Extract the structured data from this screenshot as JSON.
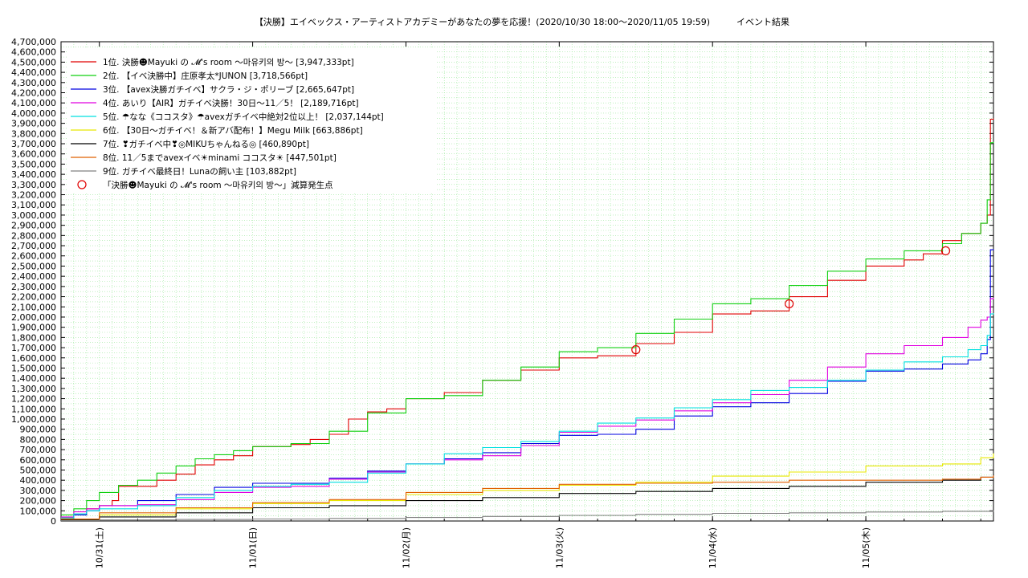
{
  "chart_data": {
    "type": "line",
    "title": "【決勝】エイベックス・アーティストアカデミーがあなたの夢を応援！(2020/10/30 18:00〜2020/11/05 19:59)　　　イベント結果",
    "y_ticks": [
      "0",
      "100,000",
      "200,000",
      "300,000",
      "400,000",
      "500,000",
      "600,000",
      "700,000",
      "800,000",
      "900,000",
      "1,000,000",
      "1,100,000",
      "1,200,000",
      "1,300,000",
      "1,400,000",
      "1,500,000",
      "1,600,000",
      "1,700,000",
      "1,800,000",
      "1,900,000",
      "2,000,000",
      "2,100,000",
      "2,200,000",
      "2,300,000",
      "2,400,000",
      "2,500,000",
      "2,600,000",
      "2,700,000",
      "2,800,000",
      "2,900,000",
      "3,000,000",
      "3,100,000",
      "3,200,000",
      "3,300,000",
      "3,400,000",
      "3,500,000",
      "3,600,000",
      "3,700,000",
      "3,800,000",
      "3,900,000",
      "4,000,000",
      "4,100,000",
      "4,200,000",
      "4,300,000",
      "4,400,000",
      "4,500,000",
      "4,600,000",
      "4,700,000"
    ],
    "ylim": [
      0,
      4700000
    ],
    "xlim": [
      "2020-10-30 18:00",
      "2020-11-05 19:59"
    ],
    "x_ticks": [
      {
        "value": "2020-10-31 00:00",
        "label": "10/31(土)"
      },
      {
        "value": "2020-11-01 00:00",
        "label": "11/01(日)"
      },
      {
        "value": "2020-11-02 00:00",
        "label": "11/02(月)"
      },
      {
        "value": "2020-11-03 00:00",
        "label": "11/03(火)"
      },
      {
        "value": "2020-11-04 00:00",
        "label": "11/04(水)"
      },
      {
        "value": "2020-11-05 00:00",
        "label": "11/05(木)"
      }
    ],
    "grid": true,
    "legend_position": "top-left",
    "series": [
      {
        "name": "1位. 決勝☻Mayuki の 𝓜's room 〜마유키의 방〜 [3,947,333pt]",
        "color": "#e00000",
        "x": [
          "2020-10-30 18:00",
          "2020-10-30 20:00",
          "2020-10-30 22:00",
          "2020-10-31 00:00",
          "2020-10-31 02:00",
          "2020-10-31 03:00",
          "2020-10-31 06:00",
          "2020-10-31 09:00",
          "2020-10-31 12:00",
          "2020-10-31 15:00",
          "2020-10-31 18:00",
          "2020-10-31 21:00",
          "2020-11-01 00:00",
          "2020-11-01 06:00",
          "2020-11-01 09:00",
          "2020-11-01 12:00",
          "2020-11-01 15:00",
          "2020-11-01 18:00",
          "2020-11-01 21:00",
          "2020-11-02 00:00",
          "2020-11-02 06:00",
          "2020-11-02 12:00",
          "2020-11-02 18:00",
          "2020-11-03 00:00",
          "2020-11-03 06:00",
          "2020-11-03 12:00",
          "2020-11-03 18:00",
          "2020-11-04 00:00",
          "2020-11-04 06:00",
          "2020-11-04 12:00",
          "2020-11-04 18:00",
          "2020-11-05 00:00",
          "2020-11-05 06:00",
          "2020-11-05 09:00",
          "2020-11-05 12:00",
          "2020-11-05 15:00",
          "2020-11-05 18:00",
          "2020-11-05 19:00",
          "2020-11-05 19:30",
          "2020-11-05 19:59"
        ],
        "y": [
          30000,
          60000,
          120000,
          150000,
          200000,
          340000,
          340000,
          400000,
          460000,
          550000,
          600000,
          640000,
          730000,
          750000,
          800000,
          850000,
          1000000,
          1070000,
          1100000,
          1200000,
          1260000,
          1380000,
          1480000,
          1600000,
          1620000,
          1740000,
          1850000,
          2030000,
          2060000,
          2200000,
          2360000,
          2500000,
          2560000,
          2620000,
          2750000,
          2820000,
          2920000,
          3000000,
          3940000,
          3947333
        ]
      },
      {
        "name": "2位. 【イベ決勝中】庄原孝太*JUNON [3,718,566pt]",
        "color": "#10d010",
        "x": [
          "2020-10-30 18:00",
          "2020-10-30 20:00",
          "2020-10-30 22:00",
          "2020-10-31 00:00",
          "2020-10-31 03:00",
          "2020-10-31 06:00",
          "2020-10-31 09:00",
          "2020-10-31 12:00",
          "2020-10-31 15:00",
          "2020-10-31 18:00",
          "2020-10-31 21:00",
          "2020-11-01 00:00",
          "2020-11-01 06:00",
          "2020-11-01 12:00",
          "2020-11-01 18:00",
          "2020-11-02 00:00",
          "2020-11-02 06:00",
          "2020-11-02 12:00",
          "2020-11-02 18:00",
          "2020-11-03 00:00",
          "2020-11-03 06:00",
          "2020-11-03 12:00",
          "2020-11-03 18:00",
          "2020-11-04 00:00",
          "2020-11-04 06:00",
          "2020-11-04 12:00",
          "2020-11-04 18:00",
          "2020-11-05 00:00",
          "2020-11-05 06:00",
          "2020-11-05 12:00",
          "2020-11-05 15:00",
          "2020-11-05 18:00",
          "2020-11-05 19:00",
          "2020-11-05 19:30",
          "2020-11-05 19:59"
        ],
        "y": [
          60000,
          120000,
          200000,
          280000,
          350000,
          400000,
          470000,
          540000,
          610000,
          650000,
          690000,
          730000,
          760000,
          880000,
          1060000,
          1200000,
          1230000,
          1380000,
          1510000,
          1660000,
          1700000,
          1840000,
          1980000,
          2130000,
          2180000,
          2310000,
          2450000,
          2570000,
          2650000,
          2720000,
          2820000,
          2920000,
          3150000,
          3710000,
          3718566
        ]
      },
      {
        "name": "3位. 【avex決勝ガチイベ】サクラ・ジ・ポリーブ [2,665,647pt]",
        "color": "#0000e0",
        "x": [
          "2020-10-30 18:00",
          "2020-10-30 20:00",
          "2020-10-30 22:00",
          "2020-10-31 00:00",
          "2020-10-31 06:00",
          "2020-10-31 12:00",
          "2020-10-31 18:00",
          "2020-11-01 00:00",
          "2020-11-01 06:00",
          "2020-11-01 12:00",
          "2020-11-01 18:00",
          "2020-11-02 00:00",
          "2020-11-02 06:00",
          "2020-11-02 12:00",
          "2020-11-02 18:00",
          "2020-11-03 00:00",
          "2020-11-03 06:00",
          "2020-11-03 12:00",
          "2020-11-03 18:00",
          "2020-11-04 00:00",
          "2020-11-04 06:00",
          "2020-11-04 12:00",
          "2020-11-04 18:00",
          "2020-11-05 00:00",
          "2020-11-05 06:00",
          "2020-11-05 12:00",
          "2020-11-05 16:00",
          "2020-11-05 18:00",
          "2020-11-05 19:00",
          "2020-11-05 19:30",
          "2020-11-05 19:59"
        ],
        "y": [
          20000,
          60000,
          100000,
          150000,
          200000,
          260000,
          330000,
          370000,
          370000,
          420000,
          490000,
          560000,
          610000,
          670000,
          760000,
          840000,
          850000,
          900000,
          1030000,
          1120000,
          1160000,
          1250000,
          1370000,
          1470000,
          1490000,
          1540000,
          1580000,
          1640000,
          1780000,
          2660000,
          2665647
        ]
      },
      {
        "name": "4位. あいり【AIR】ガチイベ決勝！30日〜11／5！ [2,189,716pt]",
        "color": "#e000e0",
        "x": [
          "2020-10-30 18:00",
          "2020-10-30 20:00",
          "2020-10-30 22:00",
          "2020-10-31 00:00",
          "2020-10-31 06:00",
          "2020-10-31 12:00",
          "2020-10-31 18:00",
          "2020-11-01 00:00",
          "2020-11-01 06:00",
          "2020-11-01 12:00",
          "2020-11-01 18:00",
          "2020-11-02 00:00",
          "2020-11-02 06:00",
          "2020-11-02 12:00",
          "2020-11-02 18:00",
          "2020-11-03 00:00",
          "2020-11-03 06:00",
          "2020-11-03 12:00",
          "2020-11-03 18:00",
          "2020-11-04 00:00",
          "2020-11-04 06:00",
          "2020-11-04 12:00",
          "2020-11-04 18:00",
          "2020-11-05 00:00",
          "2020-11-05 06:00",
          "2020-11-05 12:00",
          "2020-11-05 16:00",
          "2020-11-05 18:00",
          "2020-11-05 19:00",
          "2020-11-05 19:30",
          "2020-11-05 19:59"
        ],
        "y": [
          40000,
          90000,
          120000,
          150000,
          160000,
          210000,
          280000,
          330000,
          340000,
          410000,
          480000,
          560000,
          600000,
          640000,
          740000,
          870000,
          930000,
          990000,
          1080000,
          1160000,
          1240000,
          1380000,
          1510000,
          1640000,
          1720000,
          1800000,
          1900000,
          1970000,
          2000000,
          2180000,
          2189716
        ]
      },
      {
        "name": "5位. ☂なな《ココスタ》☂avexガチイベ中絶対2位以上！ [2,037,144pt]",
        "color": "#00e0e0",
        "x": [
          "2020-10-30 18:00",
          "2020-10-30 20:00",
          "2020-10-30 22:00",
          "2020-10-31 00:00",
          "2020-10-31 06:00",
          "2020-10-31 12:00",
          "2020-10-31 18:00",
          "2020-11-01 00:00",
          "2020-11-01 06:00",
          "2020-11-01 12:00",
          "2020-11-01 18:00",
          "2020-11-02 00:00",
          "2020-11-02 06:00",
          "2020-11-02 12:00",
          "2020-11-02 18:00",
          "2020-11-03 00:00",
          "2020-11-03 06:00",
          "2020-11-03 12:00",
          "2020-11-03 18:00",
          "2020-11-04 00:00",
          "2020-11-04 06:00",
          "2020-11-04 12:00",
          "2020-11-04 18:00",
          "2020-11-05 00:00",
          "2020-11-05 06:00",
          "2020-11-05 12:00",
          "2020-11-05 16:00",
          "2020-11-05 18:00",
          "2020-11-05 19:00",
          "2020-11-05 19:30",
          "2020-11-05 19:59"
        ],
        "y": [
          30000,
          70000,
          100000,
          120000,
          150000,
          230000,
          300000,
          340000,
          360000,
          380000,
          470000,
          560000,
          660000,
          720000,
          780000,
          880000,
          960000,
          1010000,
          1110000,
          1190000,
          1280000,
          1310000,
          1380000,
          1480000,
          1560000,
          1610000,
          1680000,
          1720000,
          1820000,
          2030000,
          2037144
        ]
      },
      {
        "name": "6位. 【30日〜ガチイベ！＆新アバ配布！】Megu Milk [663,886pt]",
        "color": "#e8e800",
        "x": [
          "2020-10-30 18:00",
          "2020-10-31 00:00",
          "2020-10-31 12:00",
          "2020-11-01 00:00",
          "2020-11-01 12:00",
          "2020-11-02 00:00",
          "2020-11-02 12:00",
          "2020-11-03 00:00",
          "2020-11-03 12:00",
          "2020-11-04 00:00",
          "2020-11-04 12:00",
          "2020-11-05 00:00",
          "2020-11-05 12:00",
          "2020-11-05 18:00",
          "2020-11-05 19:59"
        ],
        "y": [
          10000,
          60000,
          120000,
          170000,
          200000,
          260000,
          300000,
          350000,
          380000,
          440000,
          480000,
          540000,
          560000,
          620000,
          663886
        ]
      },
      {
        "name": "7位. ❣ガチイベ中❣◎MIKUちゃんねる◎ [460,890pt]",
        "color": "#000000",
        "x": [
          "2020-10-30 18:00",
          "2020-10-31 00:00",
          "2020-10-31 12:00",
          "2020-11-01 00:00",
          "2020-11-01 12:00",
          "2020-11-02 00:00",
          "2020-11-02 12:00",
          "2020-11-03 00:00",
          "2020-11-03 12:00",
          "2020-11-04 00:00",
          "2020-11-04 12:00",
          "2020-11-05 00:00",
          "2020-11-05 12:00",
          "2020-11-05 18:00",
          "2020-11-05 19:59"
        ],
        "y": [
          10000,
          40000,
          80000,
          130000,
          150000,
          200000,
          230000,
          270000,
          290000,
          320000,
          340000,
          380000,
          400000,
          430000,
          460890
        ]
      },
      {
        "name": "8位. 11／5までavexイベ☀minami ココスタ☀ [447,501pt]",
        "color": "#e06000",
        "x": [
          "2020-10-30 18:00",
          "2020-10-31 00:00",
          "2020-10-31 12:00",
          "2020-11-01 00:00",
          "2020-11-01 12:00",
          "2020-11-02 00:00",
          "2020-11-02 12:00",
          "2020-11-03 00:00",
          "2020-11-03 12:00",
          "2020-11-04 00:00",
          "2020-11-04 12:00",
          "2020-11-05 00:00",
          "2020-11-05 12:00",
          "2020-11-05 18:00",
          "2020-11-05 19:59"
        ],
        "y": [
          20000,
          80000,
          130000,
          180000,
          210000,
          280000,
          320000,
          360000,
          370000,
          380000,
          400000,
          400000,
          410000,
          430000,
          447501
        ]
      },
      {
        "name": "9位. ガチイベ最終日！Lunaの飼い主 [103,882pt]",
        "color": "#808080",
        "x": [
          "2020-10-30 18:00",
          "2020-10-31 00:00",
          "2020-10-31 12:00",
          "2020-11-01 00:00",
          "2020-11-01 12:00",
          "2020-11-02 00:00",
          "2020-11-02 12:00",
          "2020-11-03 00:00",
          "2020-11-03 12:00",
          "2020-11-04 00:00",
          "2020-11-04 12:00",
          "2020-11-05 00:00",
          "2020-11-05 12:00",
          "2020-11-05 19:59"
        ],
        "y": [
          5000,
          10000,
          15000,
          20000,
          25000,
          35000,
          45000,
          55000,
          65000,
          75000,
          80000,
          88000,
          95000,
          103882
        ]
      }
    ],
    "markers": {
      "name": "「決勝☻Mayuki の 𝓜's room 〜마유키의 방〜」減算発生点",
      "color": "#e00000",
      "x": [
        "2020-11-03 12:00",
        "2020-11-04 12:00",
        "2020-11-05 12:30"
      ],
      "y": [
        1680000,
        2130000,
        2650000
      ]
    }
  }
}
